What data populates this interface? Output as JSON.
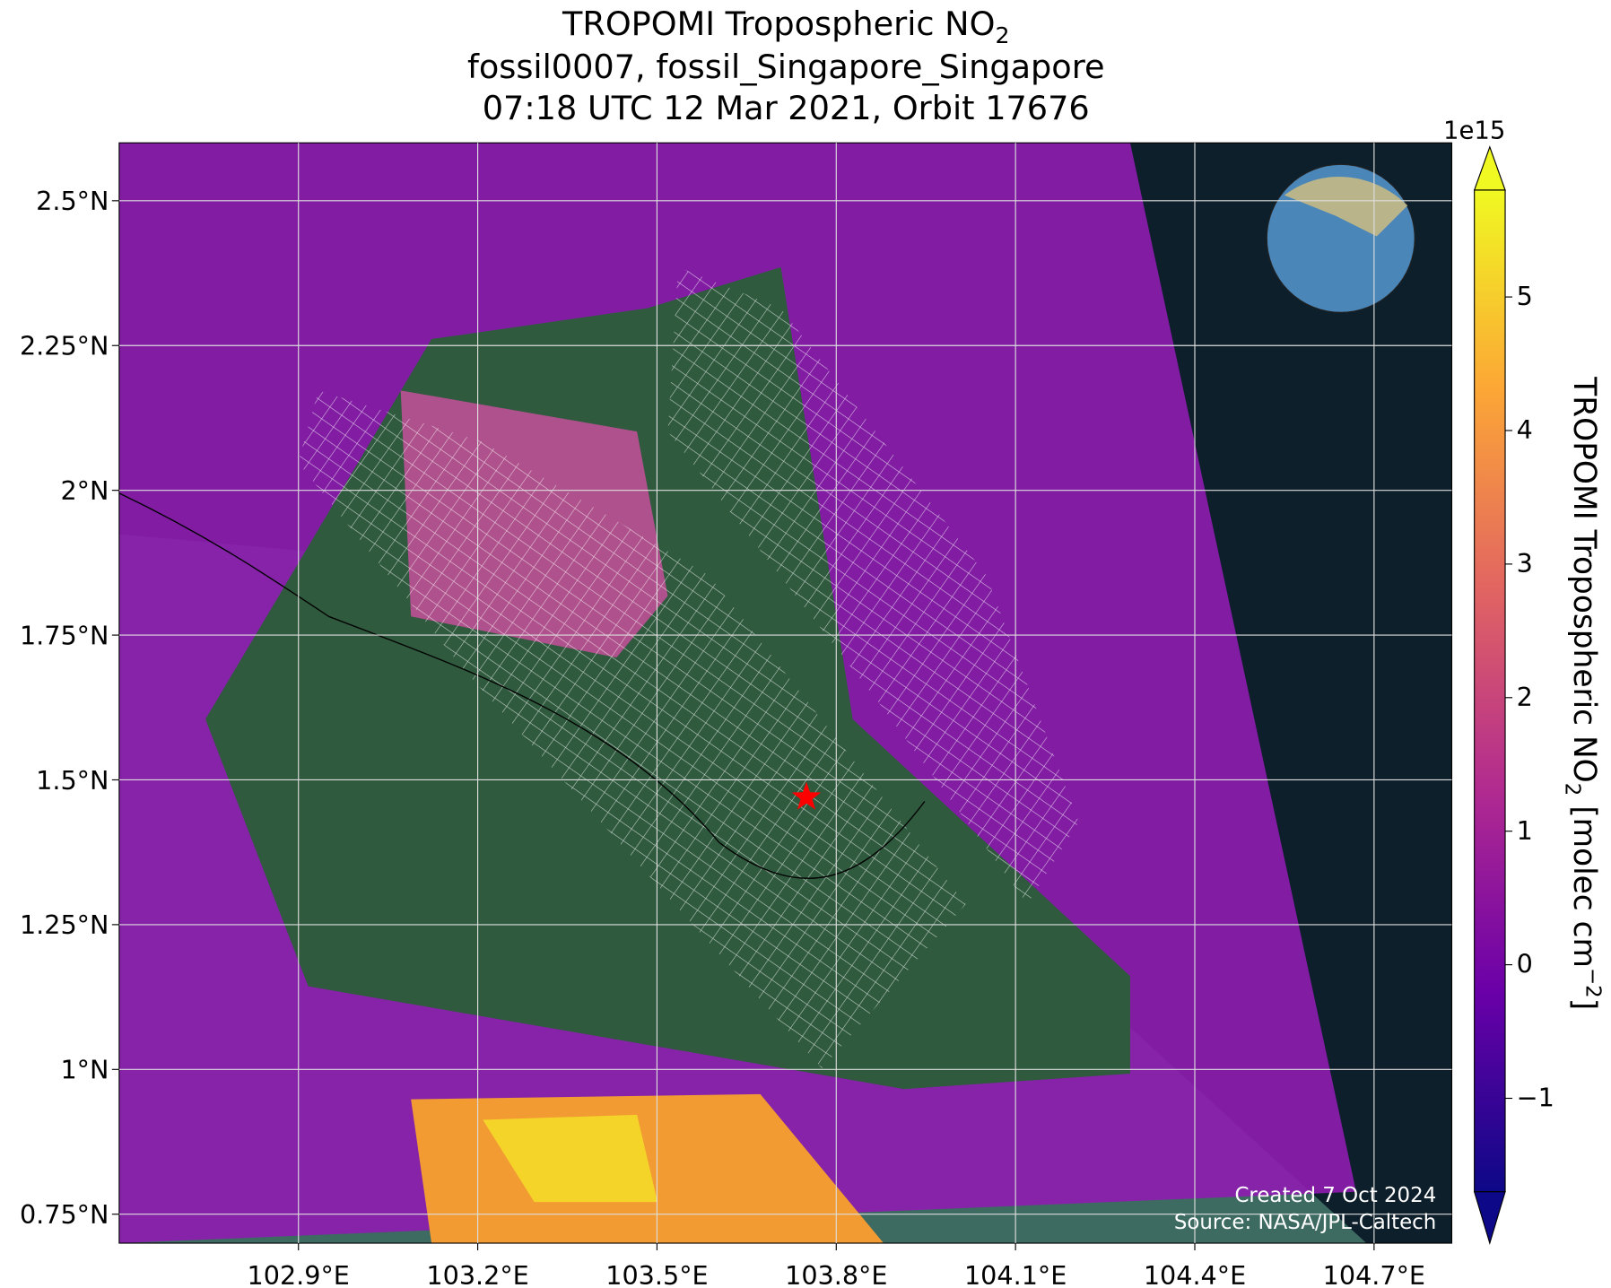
{
  "title": {
    "line1": {
      "text": "TROPOMI Tropospheric NO",
      "subscript": "2"
    },
    "line2": "fossil0007, fossil_Singapore_Singapore",
    "line3": "07:18 UTC 12 Mar 2021, Orbit 17676"
  },
  "map": {
    "xlim": [
      102.6,
      104.83
    ],
    "ylim": [
      0.7,
      2.6
    ],
    "xticks": [
      {
        "value": 102.9,
        "label": "102.9°E"
      },
      {
        "value": 103.2,
        "label": "103.2°E"
      },
      {
        "value": 103.5,
        "label": "103.5°E"
      },
      {
        "value": 103.8,
        "label": "103.8°E"
      },
      {
        "value": 104.1,
        "label": "104.1°E"
      },
      {
        "value": 104.4,
        "label": "104.4°E"
      },
      {
        "value": 104.7,
        "label": "104.7°E"
      }
    ],
    "yticks": [
      {
        "value": 0.75,
        "label": "0.75°N"
      },
      {
        "value": 1,
        "label": "1°N"
      },
      {
        "value": 1.25,
        "label": "1.25°N"
      },
      {
        "value": 1.5,
        "label": "1.5°N"
      },
      {
        "value": 1.75,
        "label": "1.75°N"
      },
      {
        "value": 2,
        "label": "2°N"
      },
      {
        "value": 2.25,
        "label": "2.25°N"
      },
      {
        "value": 2.5,
        "label": "2.5°N"
      }
    ],
    "grid": true,
    "marker": {
      "lon": 103.75,
      "lat": 1.47,
      "color": "#ff0000"
    }
  },
  "colorbar": {
    "clim": [
      -1.7,
      5.8
    ],
    "ticks": [
      {
        "value": -1,
        "label": "−1"
      },
      0,
      1,
      2,
      3,
      4,
      5
    ],
    "offset": "1e15",
    "label": {
      "text": "TROPOMI Tropospheric NO",
      "subscript": "2",
      "unit": " [molec cm",
      "superscript": "−2",
      "end": "]"
    }
  },
  "annotations": [
    "Created 7 Oct 2024",
    "Source: NASA/JPL-Caltech"
  ]
}
